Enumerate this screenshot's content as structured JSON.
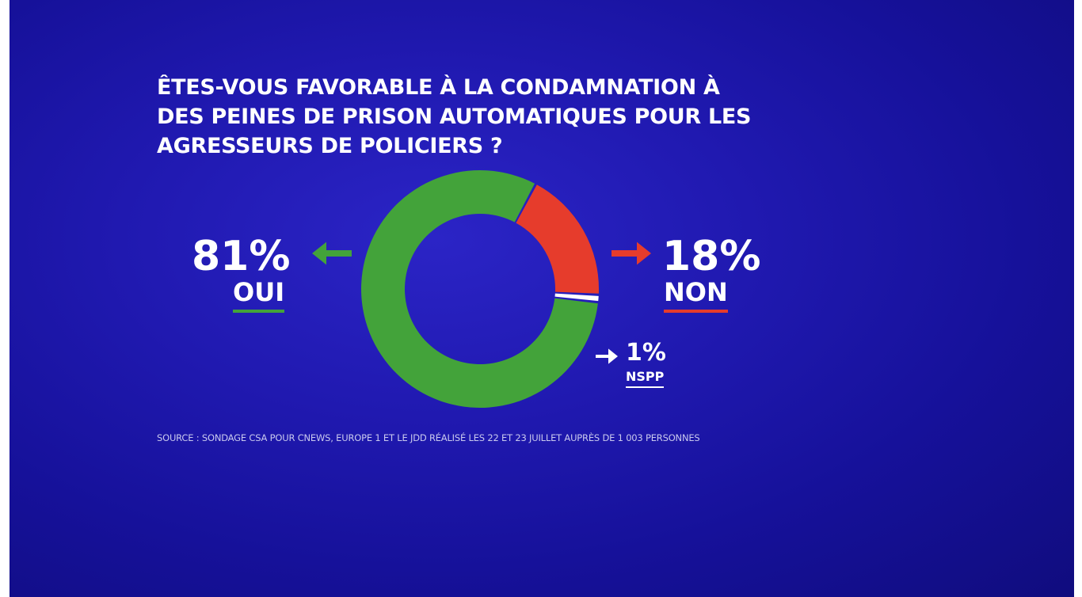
{
  "question": "ÊTES-VOUS FAVORABLE À LA CONDAMNATION À DES PEINES DE PRISON AUTOMATIQUES POUR LES AGRESSEURS DE POLICIERS ?",
  "source": "SOURCE : SONDAGE CSA POUR CNEWS, EUROPE 1 ET LE JDD RÉALISÉ LES 22 ET 23 JUILLET AUPRÈS DE 1 003 PERSONNES",
  "colors": {
    "background": "#1c16a8",
    "oui": "#43a33a",
    "non": "#e63c2c",
    "nspp": "#ffffff",
    "text": "#ffffff"
  },
  "chart_data": {
    "type": "pie",
    "variant": "donut",
    "categories": [
      "OUI",
      "NON",
      "NSPP"
    ],
    "values": [
      81,
      18,
      1
    ],
    "value_labels": [
      "81%",
      "18%",
      "1%"
    ],
    "unit": "%"
  }
}
